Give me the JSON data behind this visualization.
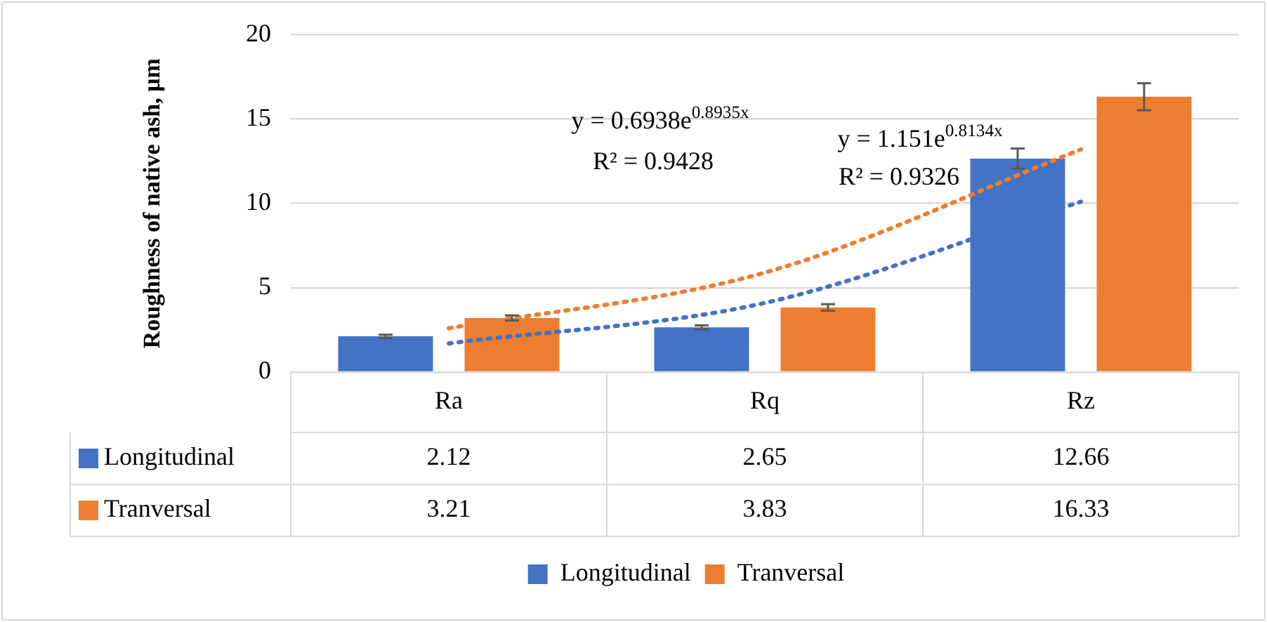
{
  "chart_data": {
    "type": "bar",
    "ylabel": "Roughness of native ash, μm",
    "categories": [
      "Ra",
      "Rq",
      "Rz"
    ],
    "series": [
      {
        "name": "Longitudinal",
        "color": "#4472c4",
        "values": [
          2.12,
          2.65,
          12.66
        ],
        "value_labels": [
          "2.12",
          "2.65",
          "12.66"
        ],
        "errors": [
          0.1,
          0.12,
          0.6
        ]
      },
      {
        "name": "Tranversal",
        "color": "#ed7d31",
        "values": [
          3.21,
          3.83,
          16.33
        ],
        "value_labels": [
          "3.21",
          "3.83",
          "16.33"
        ],
        "errors": [
          0.15,
          0.2,
          0.8
        ]
      },
      {
        "type": "line",
        "color": "#4472c4",
        "x": [
          "Ra",
          "Rq",
          "Rz"
        ],
        "values": [
          1.7,
          4.1,
          10.1
        ],
        "line_style": "dotted"
      },
      {
        "type": "line",
        "color": "#ed7d31",
        "x": [
          "Ra",
          "Rq",
          "Rz"
        ],
        "values": [
          2.6,
          5.9,
          13.2
        ],
        "line_style": "dotted"
      }
    ],
    "ylim": [
      0,
      20
    ],
    "yticks": [
      0,
      5,
      10,
      15,
      20
    ],
    "grid": "y",
    "legend": "bottom",
    "annotations": [
      "y = 0.6938e$^{0.8935x}$",
      "R² = 0.9428",
      "y = 1.151e$^{0.8134x}$",
      "R² = 0.9326"
    ]
  }
}
